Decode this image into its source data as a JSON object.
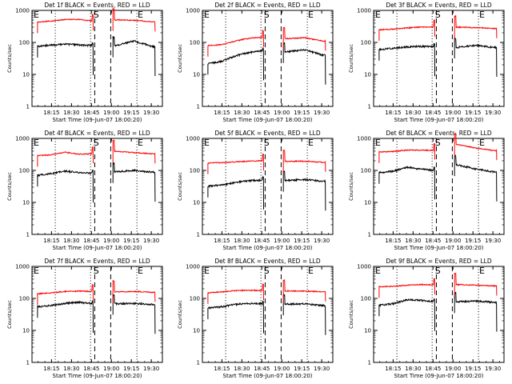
{
  "figure": {
    "ylabel": "Counts/sec",
    "xlabel": "Start Time (09-Jun-07 18:00:20)",
    "x_ticks": [
      "18:15",
      "18:30",
      "18:45",
      "19:00",
      "19:15",
      "19:30"
    ],
    "y_ticks": [
      "1",
      "10",
      "100",
      "1000"
    ],
    "markers": [
      "E",
      "S",
      "E"
    ],
    "colors": {
      "events": "#000000",
      "lld": "#ff0000"
    }
  },
  "chart_data": [
    {
      "type": "line",
      "title": "Det 1f BLACK = Events, RED = LLD",
      "yscale": "log",
      "ylim": [
        1,
        1000
      ],
      "series": [
        {
          "values": [
            75,
            82,
            88,
            84,
            80,
            76,
            110,
            74
          ]
        },
        {
          "values": [
            430,
            470,
            520,
            520,
            470,
            510,
            490,
            440
          ]
        }
      ]
    },
    {
      "type": "line",
      "title": "Det 2f BLACK = Events, RED = LLD",
      "yscale": "log",
      "ylim": [
        1,
        1000
      ],
      "series": [
        {
          "values": [
            22,
            26,
            38,
            48,
            55,
            50,
            58,
            40
          ]
        },
        {
          "values": [
            80,
            85,
            110,
            135,
            145,
            130,
            140,
            110
          ]
        }
      ]
    },
    {
      "type": "line",
      "title": "Det 3f BLACK = Events, RED = LLD",
      "yscale": "log",
      "ylim": [
        1,
        1000
      ],
      "series": [
        {
          "values": [
            60,
            66,
            72,
            75,
            73,
            70,
            80,
            70
          ]
        },
        {
          "values": [
            250,
            260,
            285,
            300,
            305,
            300,
            290,
            270
          ]
        }
      ]
    },
    {
      "type": "line",
      "title": "Det 4f BLACK = Events, RED = LLD",
      "yscale": "log",
      "ylim": [
        1,
        1000
      ],
      "series": [
        {
          "values": [
            70,
            80,
            95,
            85,
            82,
            90,
            100,
            88
          ]
        },
        {
          "values": [
            290,
            310,
            370,
            320,
            330,
            400,
            360,
            330
          ]
        }
      ]
    },
    {
      "type": "line",
      "title": "Det 5f BLACK = Events, RED = LLD",
      "yscale": "log",
      "ylim": [
        1,
        1000
      ],
      "series": [
        {
          "values": [
            32,
            35,
            42,
            48,
            50,
            48,
            52,
            46
          ]
        },
        {
          "values": [
            170,
            175,
            185,
            195,
            200,
            190,
            195,
            180
          ]
        }
      ]
    },
    {
      "type": "line",
      "title": "Det 6f BLACK = Events, RED = LLD",
      "yscale": "log",
      "ylim": [
        1,
        1000
      ],
      "series": [
        {
          "values": [
            85,
            95,
            125,
            110,
            100,
            150,
            110,
            90
          ]
        },
        {
          "values": [
            380,
            390,
            430,
            430,
            420,
            650,
            500,
            420
          ]
        }
      ]
    },
    {
      "type": "line",
      "title": "Det 7f BLACK = Events, RED = LLD",
      "yscale": "log",
      "ylim": [
        1,
        1000
      ],
      "series": [
        {
          "values": [
            55,
            60,
            70,
            75,
            70,
            68,
            70,
            65
          ]
        },
        {
          "values": [
            140,
            150,
            165,
            170,
            165,
            160,
            165,
            155
          ]
        }
      ]
    },
    {
      "type": "line",
      "title": "Det 8f BLACK = Events, RED = LLD",
      "yscale": "log",
      "ylim": [
        1,
        1000
      ],
      "series": [
        {
          "values": [
            50,
            55,
            65,
            70,
            68,
            66,
            68,
            60
          ]
        },
        {
          "values": [
            150,
            160,
            175,
            180,
            175,
            170,
            170,
            160
          ]
        }
      ]
    },
    {
      "type": "line",
      "title": "Det 9f BLACK = Events, RED = LLD",
      "yscale": "log",
      "ylim": [
        1,
        1000
      ],
      "series": [
        {
          "values": [
            62,
            68,
            90,
            88,
            80,
            78,
            82,
            76
          ]
        },
        {
          "values": [
            230,
            240,
            260,
            270,
            265,
            270,
            260,
            245
          ]
        }
      ]
    }
  ]
}
